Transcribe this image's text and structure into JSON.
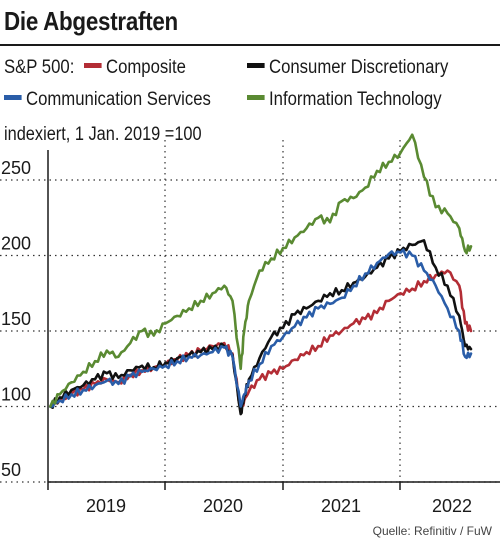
{
  "title": "Die Abgestraften",
  "legend": {
    "prefix": "S&P 500:",
    "items": [
      {
        "name": "Composite",
        "color": "#b32d35"
      },
      {
        "name": "Consumer Discretionary",
        "color": "#111111"
      },
      {
        "name": "Communication Services",
        "color": "#2a5da8"
      },
      {
        "name": "Information Technology",
        "color": "#5a8a32"
      }
    ]
  },
  "subtitle": "indexiert, 1 Jan. 2019 =100",
  "source": "Quelle: Refinitiv / FuW",
  "chart_data": {
    "type": "line",
    "ylim": [
      50,
      290
    ],
    "yticks": [
      50,
      100,
      150,
      200,
      250
    ],
    "ytick_labels": [
      "50",
      "100",
      "150",
      "200",
      "250"
    ],
    "xlim": [
      2018.5,
      2022.2
    ],
    "xticks": [
      2019,
      2020,
      2021,
      2022
    ],
    "xtick_labels": [
      "2019",
      "2020",
      "2021",
      "2022"
    ],
    "grid": "dotted",
    "series": [
      {
        "name": "Composite",
        "color": "#b32d35",
        "x": [
          2018.52,
          2018.6,
          2018.7,
          2018.8,
          2018.9,
          2019.0,
          2019.1,
          2019.2,
          2019.3,
          2019.4,
          2019.5,
          2019.6,
          2019.7,
          2019.8,
          2019.9,
          2020.0,
          2020.07,
          2020.14,
          2020.17,
          2020.21,
          2020.3,
          2020.4,
          2020.5,
          2020.6,
          2020.7,
          2020.8,
          2020.9,
          2021.0,
          2021.1,
          2021.2,
          2021.3,
          2021.4,
          2021.5,
          2021.6,
          2021.7,
          2021.8,
          2021.9,
          2022.0,
          2022.05,
          2022.1
        ],
        "y": [
          100,
          104,
          108,
          111,
          115,
          118,
          116,
          121,
          124,
          126,
          128,
          131,
          134,
          137,
          140,
          142,
          135,
          97,
          104,
          110,
          118,
          122,
          125,
          131,
          136,
          140,
          147,
          150,
          155,
          158,
          162,
          170,
          175,
          178,
          183,
          187,
          190,
          180,
          155,
          150
        ]
      },
      {
        "name": "Consumer Discretionary",
        "color": "#111111",
        "x": [
          2018.52,
          2018.6,
          2018.7,
          2018.8,
          2018.9,
          2019.0,
          2019.1,
          2019.2,
          2019.3,
          2019.4,
          2019.5,
          2019.6,
          2019.7,
          2019.8,
          2019.9,
          2020.0,
          2020.07,
          2020.14,
          2020.17,
          2020.21,
          2020.3,
          2020.4,
          2020.5,
          2020.6,
          2020.7,
          2020.8,
          2020.9,
          2021.0,
          2021.1,
          2021.2,
          2021.3,
          2021.4,
          2021.5,
          2021.6,
          2021.7,
          2021.8,
          2021.9,
          2022.0,
          2022.05,
          2022.1
        ],
        "y": [
          100,
          106,
          111,
          114,
          118,
          122,
          119,
          124,
          127,
          126,
          129,
          132,
          134,
          136,
          138,
          140,
          134,
          95,
          107,
          118,
          132,
          146,
          152,
          161,
          165,
          170,
          175,
          177,
          182,
          186,
          192,
          198,
          203,
          207,
          210,
          192,
          180,
          160,
          140,
          138
        ]
      },
      {
        "name": "Communication Services",
        "color": "#2a5da8",
        "x": [
          2018.52,
          2018.6,
          2018.7,
          2018.8,
          2018.9,
          2019.0,
          2019.1,
          2019.2,
          2019.3,
          2019.4,
          2019.5,
          2019.6,
          2019.7,
          2019.8,
          2019.9,
          2020.0,
          2020.07,
          2020.14,
          2020.17,
          2020.21,
          2020.3,
          2020.4,
          2020.5,
          2020.6,
          2020.7,
          2020.8,
          2020.9,
          2021.0,
          2021.1,
          2021.2,
          2021.3,
          2021.4,
          2021.5,
          2021.6,
          2021.7,
          2021.8,
          2021.9,
          2022.0,
          2022.05,
          2022.1
        ],
        "y": [
          100,
          104,
          108,
          111,
          114,
          117,
          115,
          120,
          123,
          125,
          127,
          130,
          133,
          134,
          136,
          139,
          133,
          100,
          108,
          117,
          128,
          140,
          146,
          153,
          159,
          165,
          168,
          172,
          180,
          188,
          195,
          201,
          202,
          200,
          190,
          180,
          165,
          150,
          133,
          135
        ]
      },
      {
        "name": "Information Technology",
        "color": "#5a8a32",
        "x": [
          2018.52,
          2018.6,
          2018.7,
          2018.8,
          2018.9,
          2019.0,
          2019.1,
          2019.2,
          2019.3,
          2019.4,
          2019.5,
          2019.6,
          2019.7,
          2019.8,
          2019.9,
          2020.0,
          2020.07,
          2020.14,
          2020.17,
          2020.21,
          2020.3,
          2020.4,
          2020.5,
          2020.6,
          2020.7,
          2020.8,
          2020.9,
          2021.0,
          2021.1,
          2021.2,
          2021.3,
          2021.4,
          2021.5,
          2021.6,
          2021.7,
          2021.8,
          2021.9,
          2022.0,
          2022.05,
          2022.1
        ],
        "y": [
          100,
          108,
          116,
          123,
          130,
          137,
          133,
          142,
          150,
          147,
          155,
          160,
          165,
          170,
          175,
          180,
          170,
          125,
          150,
          170,
          190,
          198,
          205,
          212,
          218,
          225,
          222,
          236,
          238,
          245,
          256,
          262,
          268,
          280,
          252,
          232,
          228,
          218,
          203,
          206
        ]
      }
    ]
  }
}
